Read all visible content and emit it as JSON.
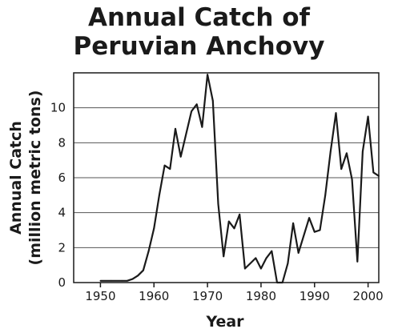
{
  "chart_data": {
    "type": "line",
    "title_lines": [
      "Annual Catch of",
      "Peruvian Anchovy"
    ],
    "xlabel": "Year",
    "ylabel_lines": [
      "Annual Catch",
      "(million metric tons)"
    ],
    "xlim": [
      1945,
      2002
    ],
    "ylim": [
      0,
      12
    ],
    "xticks": [
      1950,
      1960,
      1970,
      1980,
      1990,
      2000
    ],
    "yticks": [
      0,
      2,
      4,
      6,
      8,
      10
    ],
    "grid": "horizontal",
    "legend": "none",
    "line_color": "#1a1a1a",
    "x": [
      1950,
      1952,
      1954,
      1955,
      1956,
      1957,
      1958,
      1959,
      1960,
      1961,
      1962,
      1963,
      1964,
      1965,
      1966,
      1967,
      1968,
      1969,
      1970,
      1971,
      1972,
      1973,
      1974,
      1975,
      1976,
      1977,
      1978,
      1979,
      1980,
      1981,
      1982,
      1983,
      1984,
      1985,
      1986,
      1987,
      1988,
      1989,
      1990,
      1991,
      1992,
      1993,
      1994,
      1995,
      1996,
      1997,
      1998,
      1999,
      2000,
      2001,
      2002
    ],
    "values": [
      0.1,
      0.1,
      0.1,
      0.1,
      0.2,
      0.4,
      0.7,
      1.8,
      3.1,
      5.0,
      6.7,
      6.5,
      8.8,
      7.2,
      8.5,
      9.8,
      10.2,
      8.9,
      11.9,
      10.4,
      4.5,
      1.5,
      3.5,
      3.1,
      3.9,
      0.8,
      1.1,
      1.4,
      0.8,
      1.4,
      1.8,
      0.0,
      0.0,
      1.1,
      3.4,
      1.7,
      2.7,
      3.7,
      2.9,
      3.0,
      5.0,
      7.5,
      9.7,
      6.5,
      7.4,
      5.9,
      1.2,
      7.5,
      9.5,
      6.3,
      6.1
    ]
  }
}
